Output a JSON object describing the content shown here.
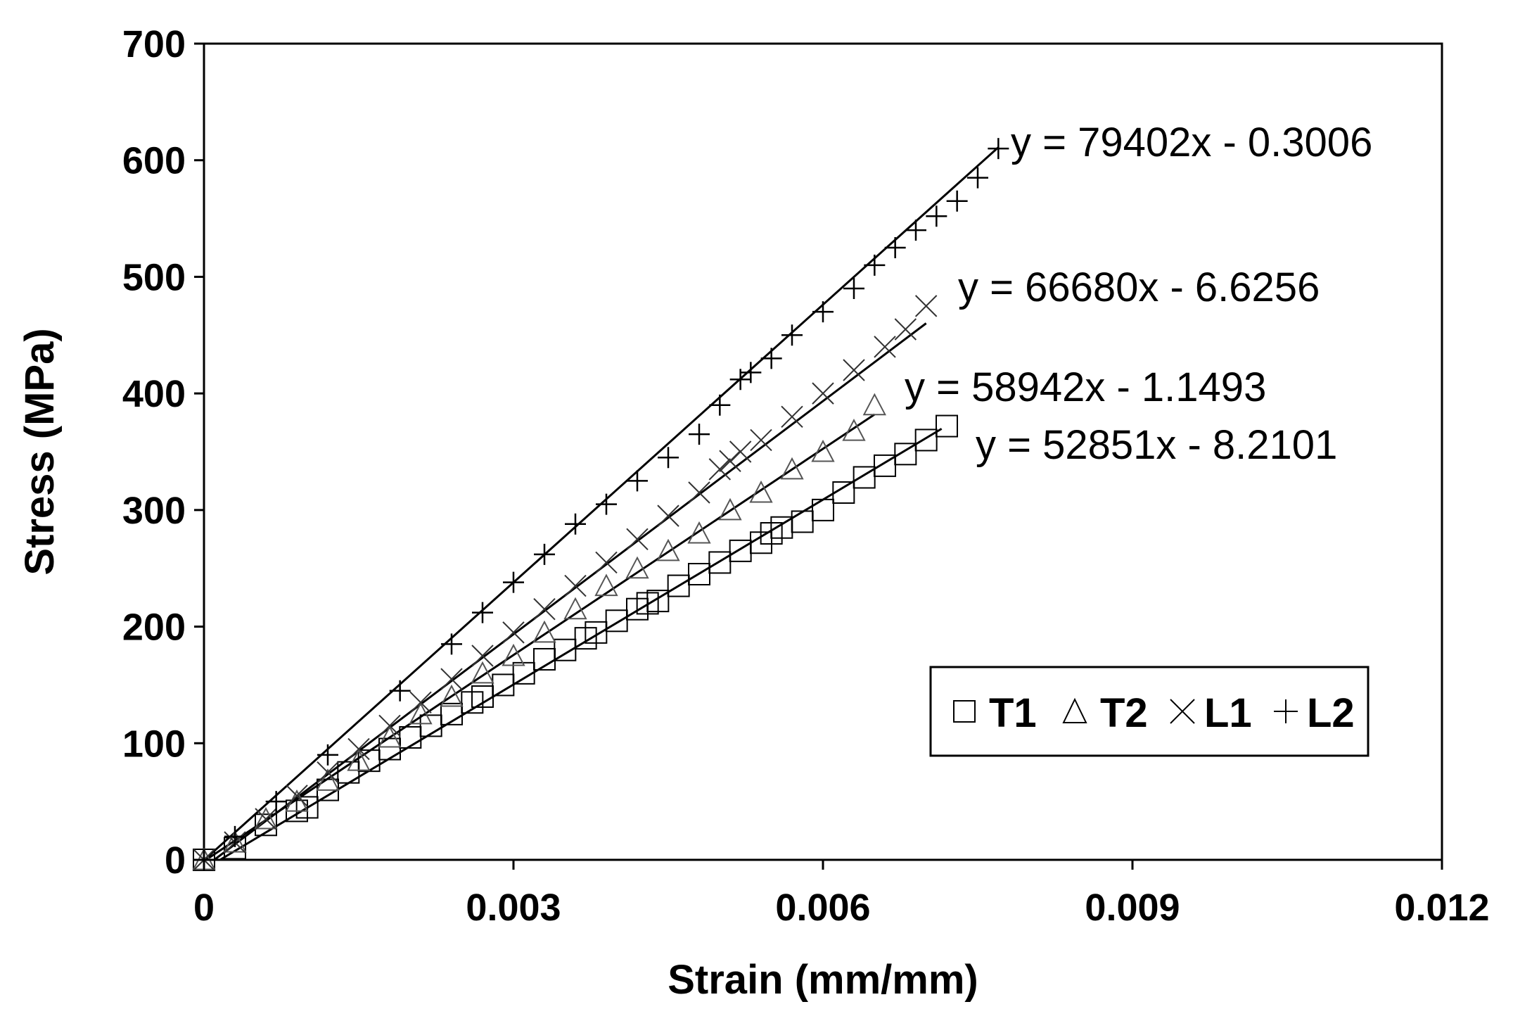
{
  "chart_data": {
    "type": "scatter",
    "title": "",
    "xlabel": "Strain (mm/mm)",
    "ylabel": "Stress (MPa)",
    "xlim": [
      0,
      0.012
    ],
    "ylim": [
      0,
      700
    ],
    "xticks": [
      0,
      0.003,
      0.006,
      0.009,
      0.012
    ],
    "xtick_labels": [
      "0",
      "0.003",
      "0.006",
      "0.009",
      "0.012"
    ],
    "yticks": [
      0,
      100,
      200,
      300,
      400,
      500,
      600,
      700
    ],
    "ytick_labels": [
      "0",
      "100",
      "200",
      "300",
      "400",
      "500",
      "600",
      "700"
    ],
    "grid": false,
    "legend_position": "bottom-right",
    "series": [
      {
        "name": "T1",
        "marker": "square",
        "trendline": {
          "slope": 52851,
          "intercept": -8.2101,
          "x_range": [
            0,
            0.00715
          ],
          "equation": "y = 52851x - 8.2101"
        },
        "x": [
          0,
          0.0003,
          0.0006,
          0.0009,
          0.001,
          0.0012,
          0.0014,
          0.0016,
          0.0018,
          0.002,
          0.0022,
          0.0024,
          0.0026,
          0.0027,
          0.0029,
          0.0031,
          0.0033,
          0.0035,
          0.0037,
          0.0038,
          0.004,
          0.0042,
          0.0043,
          0.0044,
          0.0046,
          0.0048,
          0.005,
          0.0052,
          0.0054,
          0.0055,
          0.0056,
          0.0058,
          0.006,
          0.0062,
          0.0064,
          0.0066,
          0.0068,
          0.007,
          0.0072
        ],
        "y": [
          0,
          10,
          30,
          42,
          45,
          60,
          75,
          85,
          95,
          105,
          115,
          125,
          135,
          140,
          150,
          160,
          172,
          180,
          190,
          195,
          205,
          215,
          220,
          222,
          235,
          245,
          255,
          265,
          272,
          280,
          285,
          290,
          300,
          315,
          328,
          338,
          348,
          360,
          372
        ]
      },
      {
        "name": "T2",
        "marker": "triangle",
        "trendline": {
          "slope": 58942,
          "intercept": -1.1493,
          "x_range": [
            0,
            0.0065
          ],
          "equation": "y = 58942x - 1.1493"
        },
        "x": [
          0,
          0.0003,
          0.0006,
          0.0009,
          0.0012,
          0.0015,
          0.0018,
          0.0021,
          0.0024,
          0.0027,
          0.003,
          0.0033,
          0.0036,
          0.0039,
          0.0042,
          0.0045,
          0.0048,
          0.0051,
          0.0054,
          0.0057,
          0.006,
          0.0063,
          0.0065
        ],
        "y": [
          0,
          15,
          35,
          50,
          68,
          85,
          105,
          125,
          140,
          160,
          175,
          195,
          215,
          235,
          250,
          265,
          280,
          300,
          315,
          335,
          350,
          368,
          390
        ]
      },
      {
        "name": "L1",
        "marker": "x",
        "trendline": {
          "slope": 66680,
          "intercept": -6.6256,
          "x_range": [
            0,
            0.007
          ],
          "equation": "y = 66680x - 6.6256"
        },
        "x": [
          0,
          0.0003,
          0.0006,
          0.0009,
          0.0012,
          0.0015,
          0.0018,
          0.0021,
          0.0024,
          0.0027,
          0.003,
          0.0033,
          0.0036,
          0.0039,
          0.0042,
          0.0045,
          0.0048,
          0.005,
          0.0051,
          0.0052,
          0.0054,
          0.0057,
          0.006,
          0.0063,
          0.0066,
          0.0068,
          0.007
        ],
        "y": [
          0,
          15,
          35,
          55,
          75,
          95,
          115,
          135,
          155,
          175,
          195,
          215,
          235,
          255,
          275,
          295,
          315,
          335,
          342,
          350,
          360,
          380,
          400,
          420,
          440,
          455,
          475
        ]
      },
      {
        "name": "L2",
        "marker": "plus",
        "trendline": {
          "slope": 79402,
          "intercept": -0.3006,
          "x_range": [
            0,
            0.0077
          ],
          "equation": "y = 79402x - 0.3006"
        },
        "x": [
          0,
          0.0003,
          0.0007,
          0.0012,
          0.0019,
          0.0024,
          0.0027,
          0.003,
          0.0033,
          0.0036,
          0.0039,
          0.0042,
          0.0045,
          0.0048,
          0.005,
          0.0052,
          0.0053,
          0.0055,
          0.0057,
          0.006,
          0.0063,
          0.0065,
          0.0067,
          0.0069,
          0.0071,
          0.0073,
          0.0075,
          0.0077
        ],
        "y": [
          0,
          20,
          50,
          90,
          145,
          185,
          212,
          238,
          262,
          288,
          305,
          325,
          345,
          365,
          390,
          412,
          418,
          430,
          450,
          470,
          490,
          510,
          525,
          540,
          552,
          565,
          585,
          610
        ]
      }
    ],
    "annotations": [
      {
        "text": "y = 79402x - 0.3006",
        "series": "L2"
      },
      {
        "text": "y = 66680x - 6.6256",
        "series": "L1"
      },
      {
        "text": "y = 58942x - 1.1493",
        "series": "T2"
      },
      {
        "text": "y = 52851x - 8.2101",
        "series": "T1"
      }
    ]
  }
}
